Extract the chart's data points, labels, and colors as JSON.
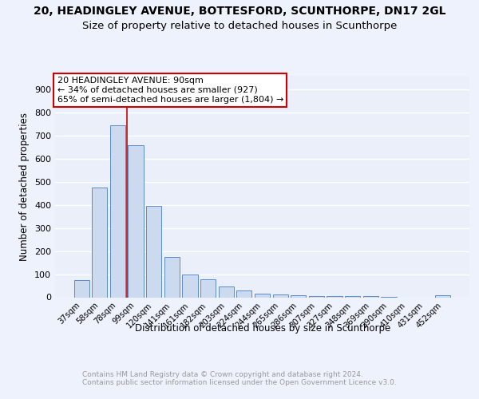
{
  "title1": "20, HEADINGLEY AVENUE, BOTTESFORD, SCUNTHORPE, DN17 2GL",
  "title2": "Size of property relative to detached houses in Scunthorpe",
  "xlabel": "Distribution of detached houses by size in Scunthorpe",
  "ylabel": "Number of detached properties",
  "categories": [
    "37sqm",
    "58sqm",
    "78sqm",
    "99sqm",
    "120sqm",
    "141sqm",
    "161sqm",
    "182sqm",
    "203sqm",
    "224sqm",
    "244sqm",
    "265sqm",
    "286sqm",
    "307sqm",
    "327sqm",
    "348sqm",
    "369sqm",
    "390sqm",
    "410sqm",
    "431sqm",
    "452sqm"
  ],
  "values": [
    75,
    475,
    745,
    660,
    395,
    175,
    100,
    78,
    45,
    30,
    15,
    13,
    10,
    5,
    5,
    5,
    5,
    3,
    0,
    0,
    10
  ],
  "bar_color": "#ccdaf0",
  "bar_edge_color": "#5b8cc8",
  "vline_color": "#cc0000",
  "annotation_title": "20 HEADINGLEY AVENUE: 90sqm",
  "annotation_line1": "← 34% of detached houses are smaller (927)",
  "annotation_line2": "65% of semi-detached houses are larger (1,804) →",
  "annotation_box_color": "#cc0000",
  "annotation_bg": "#ffffff",
  "ylim": [
    0,
    960
  ],
  "yticks": [
    0,
    100,
    200,
    300,
    400,
    500,
    600,
    700,
    800,
    900
  ],
  "footer_line1": "Contains HM Land Registry data © Crown copyright and database right 2024.",
  "footer_line2": "Contains public sector information licensed under the Open Government Licence v3.0.",
  "bg_color": "#eef2fc",
  "plot_bg": "#eaeff9",
  "grid_color": "#ffffff",
  "title_fontsize": 10,
  "subtitle_fontsize": 9.5
}
